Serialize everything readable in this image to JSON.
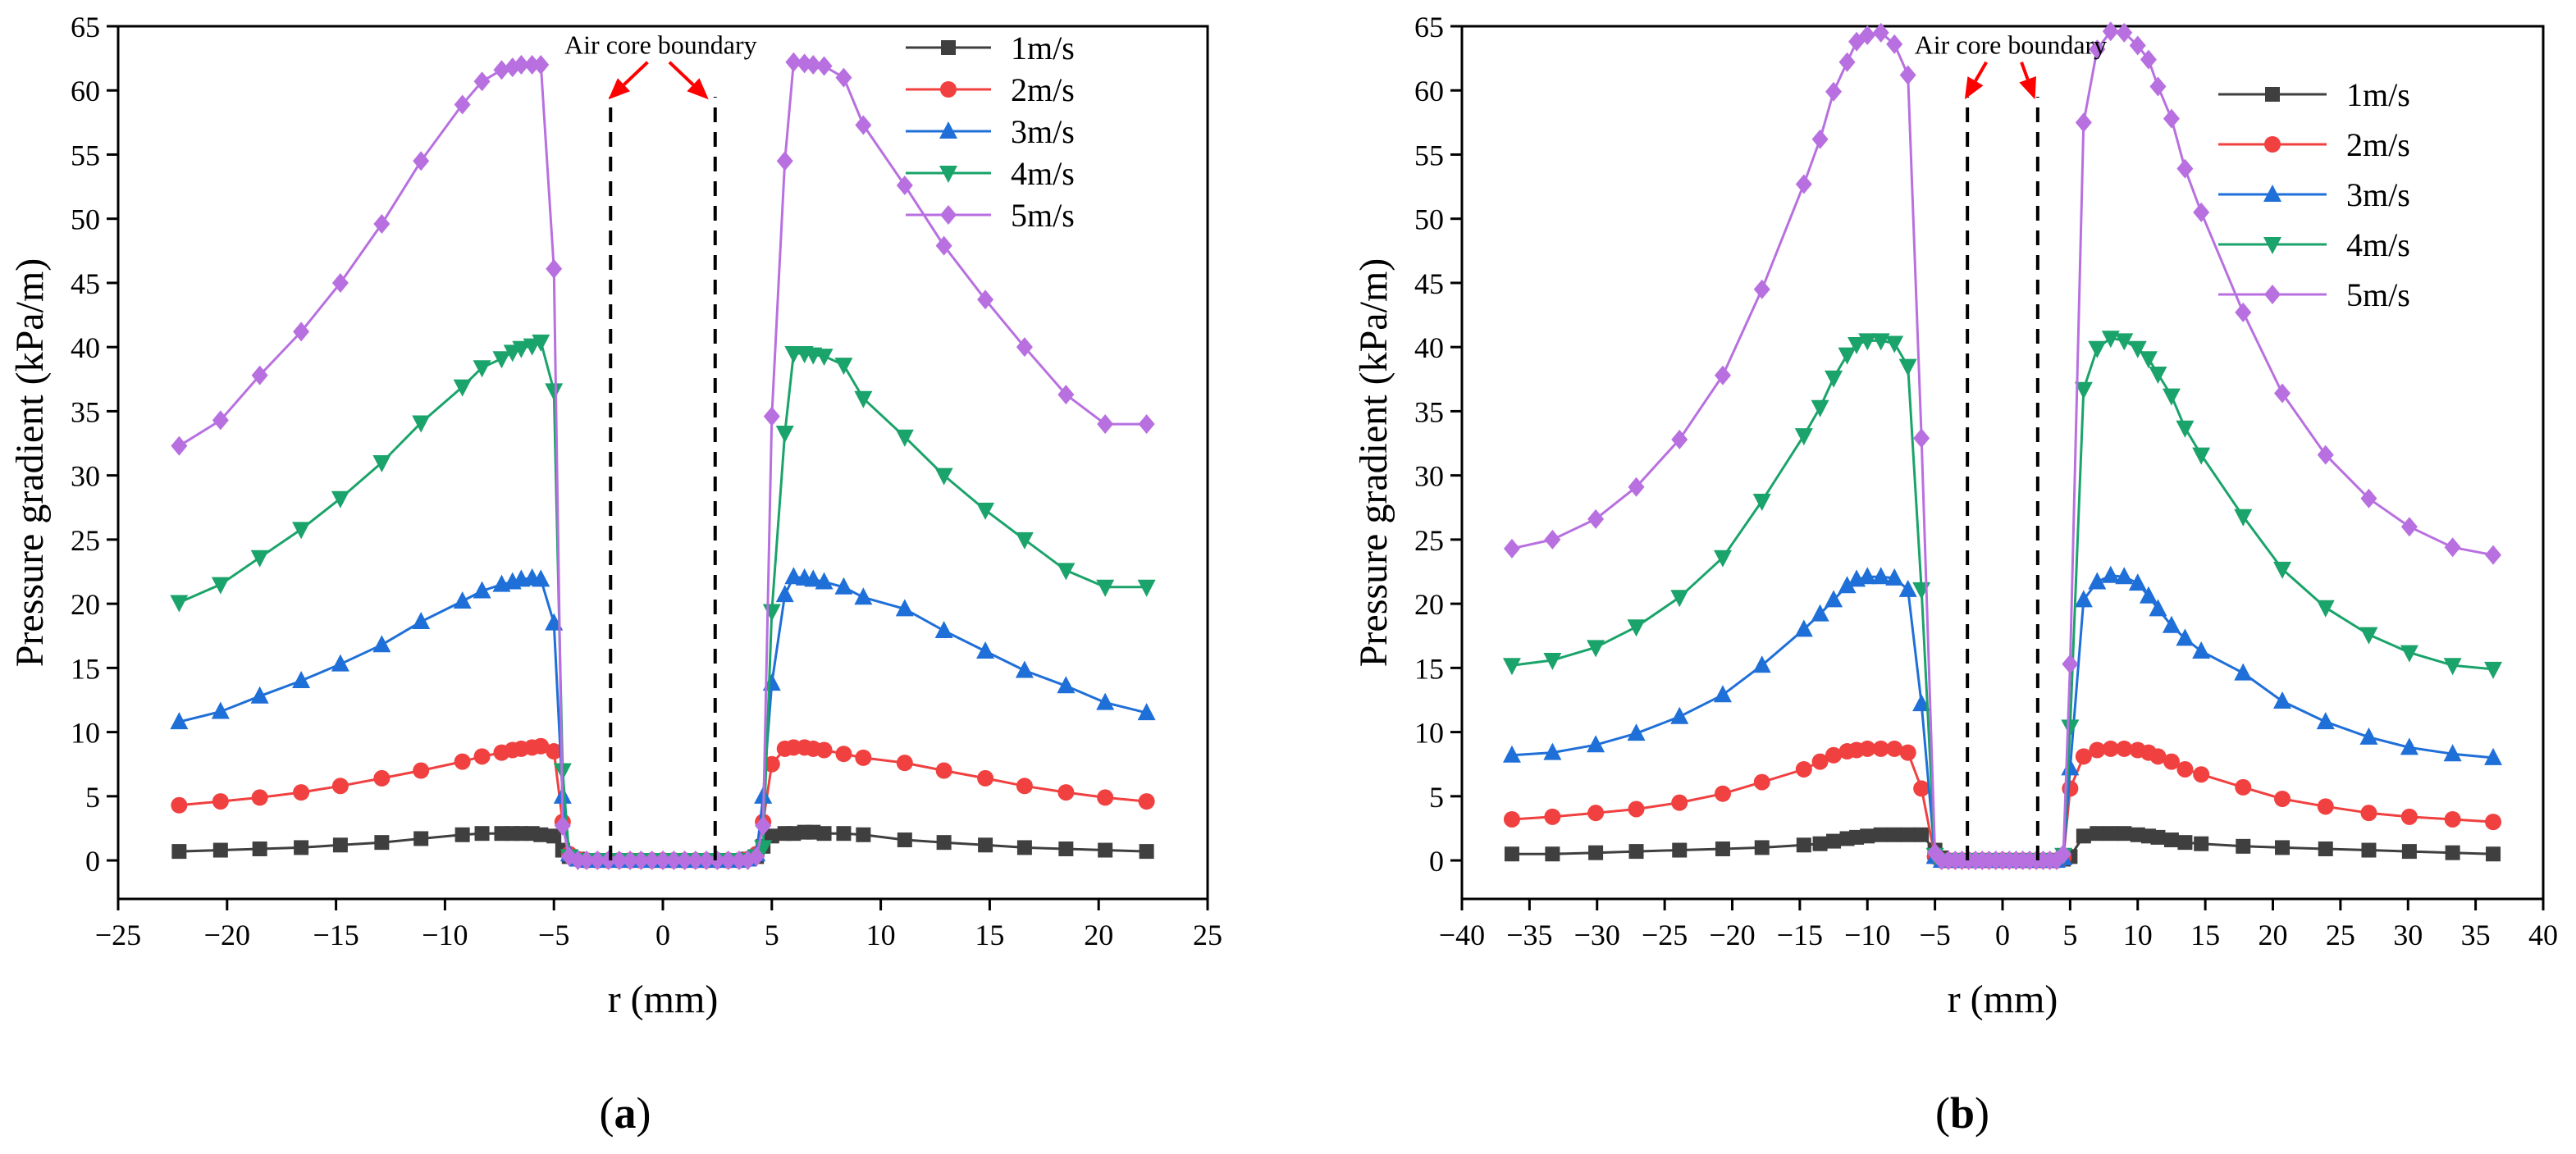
{
  "figure": {
    "panel_labels": [
      "(a)",
      "(b)"
    ]
  },
  "chart_data": [
    {
      "type": "line",
      "panel": "(a)",
      "title": "",
      "xlabel": "r (mm)",
      "ylabel": "Pressure gradient (kPa/m)",
      "xlim": [
        -25,
        25
      ],
      "ylim": [
        -3,
        65
      ],
      "xticks": [
        -25,
        -20,
        -15,
        -10,
        -5,
        0,
        5,
        10,
        15,
        20,
        25
      ],
      "yticks": [
        0,
        5,
        10,
        15,
        20,
        25,
        30,
        35,
        40,
        45,
        50,
        55,
        60,
        65
      ],
      "legend_position": "top-right",
      "annotation": {
        "text": "Air core boundary",
        "boundaries_x": [
          -2.4,
          2.4
        ],
        "boundary_ylim": [
          0,
          59.5
        ],
        "text_anchor": [
          -0.1,
          63.5
        ],
        "arrows": [
          {
            "from": [
              -0.7,
              62.2
            ],
            "to": [
              -2.5,
              59.3
            ]
          },
          {
            "from": [
              0.3,
              62.2
            ],
            "to": [
              2.1,
              59.3
            ]
          }
        ]
      },
      "x_left": [
        -22.2,
        -20.3,
        -18.5,
        -16.6,
        -14.8,
        -12.9,
        -11.1,
        -9.2,
        -8.3,
        -7.4,
        -6.9,
        -6.5,
        -6.0,
        -5.6,
        -5.0,
        -4.6,
        -4.3,
        -3.9,
        -3.5,
        -3.0,
        -2.5,
        -2.0,
        -1.5,
        -1.0,
        -0.5,
        0
      ],
      "x_right": [
        0,
        0.5,
        1.0,
        1.5,
        2.0,
        2.5,
        3.0,
        3.5,
        3.9,
        4.3,
        4.6,
        5.0,
        5.6,
        6.0,
        6.5,
        6.9,
        7.4,
        8.3,
        9.2,
        11.1,
        12.9,
        14.8,
        16.6,
        18.5,
        20.3,
        22.2
      ],
      "series": [
        {
          "name": "1m/s",
          "color": "#3f3f3f",
          "marker": "square",
          "left": [
            0.7,
            0.8,
            0.9,
            1.0,
            1.2,
            1.4,
            1.7,
            2.0,
            2.1,
            2.1,
            2.1,
            2.1,
            2.1,
            2.0,
            1.9,
            0.8,
            0.3,
            0.1,
            0.0,
            0.0,
            0.0,
            0.0,
            0.0,
            0.0,
            0.0,
            0.0
          ],
          "right": [
            0.0,
            0.0,
            0.0,
            0.0,
            0.0,
            0.0,
            0.0,
            0.0,
            0.1,
            0.3,
            1.1,
            1.9,
            2.1,
            2.1,
            2.2,
            2.2,
            2.1,
            2.1,
            2.0,
            1.6,
            1.4,
            1.2,
            1.0,
            0.9,
            0.8,
            0.7
          ]
        },
        {
          "name": "2m/s",
          "color": "#f04040",
          "marker": "circle",
          "left": [
            4.3,
            4.6,
            4.9,
            5.3,
            5.8,
            6.4,
            7.0,
            7.7,
            8.1,
            8.4,
            8.6,
            8.7,
            8.8,
            8.9,
            8.5,
            3.0,
            0.5,
            0.1,
            0.0,
            0.0,
            0.0,
            0.0,
            0.0,
            0.0,
            0.0,
            0.0
          ],
          "right": [
            0.0,
            0.0,
            0.0,
            0.0,
            0.0,
            0.0,
            0.0,
            0.0,
            0.1,
            0.5,
            3.0,
            7.5,
            8.7,
            8.8,
            8.8,
            8.7,
            8.6,
            8.3,
            8.0,
            7.6,
            7.0,
            6.4,
            5.8,
            5.3,
            4.9,
            4.6
          ]
        },
        {
          "name": "3m/s",
          "color": "#1f6fd8",
          "marker": "triangle-up",
          "left": [
            10.8,
            11.6,
            12.8,
            14.0,
            15.3,
            16.8,
            18.6,
            20.2,
            21.0,
            21.5,
            21.7,
            21.9,
            22.0,
            21.9,
            18.5,
            5.0,
            0.5,
            0.1,
            0.0,
            0.0,
            0.0,
            0.0,
            0.0,
            0.0,
            0.0,
            0.0
          ],
          "right": [
            0.0,
            0.0,
            0.0,
            0.0,
            0.0,
            0.0,
            0.0,
            0.0,
            0.1,
            0.5,
            5.0,
            13.8,
            20.7,
            22.1,
            22.0,
            21.9,
            21.7,
            21.3,
            20.5,
            19.6,
            17.9,
            16.3,
            14.8,
            13.6,
            12.3,
            11.5
          ]
        },
        {
          "name": "4m/s",
          "color": "#1aa36a",
          "marker": "triangle-down",
          "left": [
            20.1,
            21.5,
            23.6,
            25.8,
            28.2,
            31.0,
            34.1,
            36.9,
            38.4,
            39.1,
            39.6,
            39.9,
            40.1,
            40.4,
            36.6,
            7.0,
            0.3,
            0.0,
            0.0,
            0.0,
            0.0,
            0.0,
            0.0,
            0.0,
            0.0,
            0.0
          ],
          "right": [
            0.0,
            0.0,
            0.0,
            0.0,
            0.0,
            0.0,
            0.0,
            0.0,
            0.0,
            0.3,
            1.0,
            19.4,
            33.3,
            39.5,
            39.5,
            39.4,
            39.3,
            38.6,
            36.0,
            33.0,
            30.0,
            27.3,
            25.0,
            22.6,
            21.3,
            21.3
          ]
        },
        {
          "name": "5m/s",
          "color": "#b870e0",
          "marker": "diamond",
          "left": [
            32.3,
            34.3,
            37.8,
            41.2,
            45.0,
            49.6,
            54.5,
            58.9,
            60.7,
            61.6,
            61.8,
            62.0,
            62.0,
            62.0,
            46.1,
            2.7,
            0.3,
            0.0,
            0.0,
            0.0,
            0.0,
            0.0,
            0.0,
            0.0,
            0.0,
            0.0
          ],
          "right": [
            0.0,
            0.0,
            0.0,
            0.0,
            0.0,
            0.0,
            0.0,
            0.0,
            0.0,
            0.3,
            2.7,
            34.6,
            54.5,
            62.2,
            62.1,
            62.0,
            61.9,
            61.0,
            57.3,
            52.6,
            47.9,
            43.7,
            40.0,
            36.3,
            34.0,
            34.0
          ]
        }
      ]
    },
    {
      "type": "line",
      "panel": "(b)",
      "title": "",
      "xlabel": "r (mm)",
      "ylabel": "Pressure gradient (kPa/m)",
      "xlim": [
        -40,
        40
      ],
      "ylim": [
        -3,
        65
      ],
      "xticks": [
        -40,
        -35,
        -30,
        -25,
        -20,
        -15,
        -10,
        -5,
        0,
        5,
        10,
        15,
        20,
        25,
        30,
        35,
        40
      ],
      "yticks": [
        0,
        5,
        10,
        15,
        20,
        25,
        30,
        35,
        40,
        45,
        50,
        55,
        60,
        65
      ],
      "legend_position": "top-right",
      "annotation": {
        "text": "Air core boundary",
        "boundaries_x": [
          -2.6,
          2.6
        ],
        "boundary_ylim": [
          0,
          59.5
        ],
        "text_anchor": [
          0.6,
          63.5
        ],
        "arrows": [
          {
            "from": [
              -1.2,
              62.2
            ],
            "to": [
              -2.8,
              59.3
            ]
          },
          {
            "from": [
              1.4,
              62.2
            ],
            "to": [
              2.4,
              59.3
            ]
          }
        ]
      },
      "x_left": [
        -36.3,
        -33.3,
        -30.1,
        -27.1,
        -23.9,
        -20.7,
        -17.8,
        -14.7,
        -13.5,
        -12.5,
        -11.5,
        -10.8,
        -10.0,
        -9.0,
        -8.0,
        -7.0,
        -6.0,
        -5.0,
        -4.5,
        -4.0,
        -3.5,
        -3.0,
        -2.5,
        -2.0,
        -1.5,
        -1.0,
        -0.5,
        0
      ],
      "x_right": [
        0,
        0.5,
        1.0,
        1.5,
        2.0,
        2.5,
        3.0,
        3.5,
        4.0,
        4.5,
        5.0,
        6.0,
        7.0,
        8.0,
        9.0,
        10.0,
        10.8,
        11.5,
        12.5,
        13.5,
        14.7,
        17.8,
        20.7,
        23.9,
        27.1,
        30.1,
        33.3,
        36.3
      ],
      "series": [
        {
          "name": "1m/s",
          "color": "#3f3f3f",
          "marker": "square",
          "left": [
            0.5,
            0.5,
            0.6,
            0.7,
            0.8,
            0.9,
            1.0,
            1.2,
            1.3,
            1.5,
            1.7,
            1.8,
            1.9,
            2.0,
            2.0,
            2.0,
            2.0,
            0.8,
            0.2,
            0.0,
            0.0,
            0.0,
            0.0,
            0.0,
            0.0,
            0.0,
            0.0,
            0.0
          ],
          "right": [
            0.0,
            0.0,
            0.0,
            0.0,
            0.0,
            0.0,
            0.0,
            0.0,
            0.0,
            0.1,
            0.3,
            1.9,
            2.1,
            2.1,
            2.1,
            2.0,
            1.9,
            1.8,
            1.6,
            1.4,
            1.3,
            1.1,
            1.0,
            0.9,
            0.8,
            0.7,
            0.6,
            0.5
          ]
        },
        {
          "name": "2m/s",
          "color": "#f04040",
          "marker": "circle",
          "left": [
            3.2,
            3.4,
            3.7,
            4.0,
            4.5,
            5.2,
            6.1,
            7.1,
            7.7,
            8.2,
            8.5,
            8.6,
            8.7,
            8.7,
            8.7,
            8.4,
            5.6,
            0.3,
            0.0,
            0.0,
            0.0,
            0.0,
            0.0,
            0.0,
            0.0,
            0.0,
            0.0,
            0.0
          ],
          "right": [
            0.0,
            0.0,
            0.0,
            0.0,
            0.0,
            0.0,
            0.0,
            0.0,
            0.0,
            0.2,
            5.6,
            8.1,
            8.6,
            8.7,
            8.7,
            8.6,
            8.4,
            8.1,
            7.7,
            7.1,
            6.7,
            5.7,
            4.8,
            4.2,
            3.7,
            3.4,
            3.2,
            3.0
          ]
        },
        {
          "name": "3m/s",
          "color": "#1f6fd8",
          "marker": "triangle-up",
          "left": [
            8.2,
            8.4,
            9.0,
            9.9,
            11.2,
            12.9,
            15.2,
            18.0,
            19.2,
            20.3,
            21.4,
            21.9,
            22.1,
            22.1,
            22.0,
            21.1,
            12.2,
            0.3,
            0.0,
            0.0,
            0.0,
            0.0,
            0.0,
            0.0,
            0.0,
            0.0,
            0.0,
            0.0
          ],
          "right": [
            0.0,
            0.0,
            0.0,
            0.0,
            0.0,
            0.0,
            0.0,
            0.0,
            0.0,
            0.2,
            7.2,
            20.3,
            21.7,
            22.2,
            22.1,
            21.6,
            20.6,
            19.6,
            18.3,
            17.3,
            16.3,
            14.6,
            12.4,
            10.8,
            9.6,
            8.8,
            8.3,
            8.0
          ]
        },
        {
          "name": "4m/s",
          "color": "#1aa36a",
          "marker": "triangle-down",
          "left": [
            15.2,
            15.6,
            16.6,
            18.2,
            20.5,
            23.6,
            28.0,
            33.1,
            35.3,
            37.6,
            39.4,
            40.2,
            40.5,
            40.5,
            40.3,
            38.5,
            21.1,
            0.4,
            0.0,
            0.0,
            0.0,
            0.0,
            0.0,
            0.0,
            0.0,
            0.0,
            0.0,
            0.0
          ],
          "right": [
            0.0,
            0.0,
            0.0,
            0.0,
            0.0,
            0.0,
            0.0,
            0.0,
            0.0,
            0.4,
            10.4,
            36.7,
            39.9,
            40.7,
            40.5,
            39.9,
            39.1,
            37.9,
            36.2,
            33.7,
            31.6,
            26.8,
            22.7,
            19.7,
            17.6,
            16.2,
            15.2,
            14.9
          ]
        },
        {
          "name": "5m/s",
          "color": "#b870e0",
          "marker": "diamond",
          "left": [
            24.3,
            25.0,
            26.6,
            29.1,
            32.8,
            37.8,
            44.5,
            52.7,
            56.2,
            59.9,
            62.2,
            63.8,
            64.3,
            64.5,
            63.6,
            61.2,
            32.9,
            0.6,
            0.0,
            0.0,
            0.0,
            0.0,
            0.0,
            0.0,
            0.0,
            0.0,
            0.0,
            0.0
          ],
          "right": [
            0.0,
            0.0,
            0.0,
            0.0,
            0.0,
            0.0,
            0.0,
            0.0,
            0.0,
            0.5,
            15.3,
            57.5,
            63.2,
            64.6,
            64.5,
            63.5,
            62.4,
            60.3,
            57.8,
            53.9,
            50.5,
            42.7,
            36.4,
            31.6,
            28.2,
            26.0,
            24.4,
            23.8
          ]
        }
      ]
    }
  ]
}
